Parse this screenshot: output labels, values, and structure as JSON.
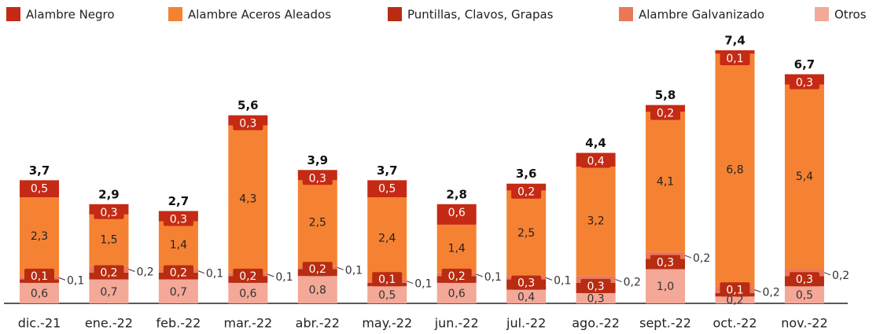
{
  "chart_data": {
    "type": "stacked-bar",
    "categories": [
      "dic.-21",
      "ene.-22",
      "feb.-22",
      "mar.-22",
      "abr.-22",
      "may.-22",
      "jun.-22",
      "jul.-22",
      "ago.-22",
      "sept.-22",
      "oct.-22",
      "nov.-22"
    ],
    "series": [
      {
        "name": "Otros",
        "color": "#f3a898",
        "values": [
          0.6,
          0.7,
          0.7,
          0.6,
          0.8,
          0.5,
          0.6,
          0.4,
          0.3,
          1.0,
          0.2,
          0.5
        ],
        "value_labels": [
          "0,6",
          "0,7",
          "0,7",
          "0,6",
          "0,8",
          "0,5",
          "0,6",
          "0,4",
          "0,3",
          "1,0",
          "0,2",
          "0,5"
        ]
      },
      {
        "name": "Puntillas, Clavos, Grapas",
        "color": "#b92c12",
        "values": [
          0.1,
          0.2,
          0.2,
          0.2,
          0.2,
          0.1,
          0.2,
          0.3,
          0.3,
          0.3,
          0.1,
          0.3
        ],
        "value_labels": [
          "0,1",
          "0,2",
          "0,2",
          "0,2",
          "0,2",
          "0,1",
          "0,2",
          "0,3",
          "0,3",
          "0,3",
          "0,1",
          "0,3"
        ]
      },
      {
        "name": "Alambre Galvanizado",
        "color": "#ea7858",
        "values": [
          0.1,
          0.2,
          0.1,
          0.1,
          0.1,
          0.1,
          0.1,
          0.1,
          0.2,
          0.2,
          0.2,
          0.2
        ],
        "value_labels": [
          "0,1",
          "0,2",
          "0,1",
          "0,1",
          "0,1",
          "0,1",
          "0,1",
          "0,1",
          "0,2",
          "0,2",
          "0,2",
          "0,2"
        ]
      },
      {
        "name": "Alambre Aceros Aleados",
        "color": "#f58232",
        "values": [
          2.3,
          1.5,
          1.4,
          4.3,
          2.5,
          2.4,
          1.4,
          2.5,
          3.2,
          4.1,
          6.8,
          5.4
        ],
        "value_labels": [
          "2,3",
          "1,5",
          "1,4",
          "4,3",
          "2,5",
          "2,4",
          "1,4",
          "2,5",
          "3,2",
          "4,1",
          "6,8",
          "5,4"
        ]
      },
      {
        "name": "Alambre Negro",
        "color": "#c52a15",
        "values": [
          0.5,
          0.3,
          0.3,
          0.3,
          0.3,
          0.5,
          0.6,
          0.2,
          0.4,
          0.2,
          0.1,
          0.3
        ],
        "value_labels": [
          "0,5",
          "0,3",
          "0,3",
          "0,3",
          "0,3",
          "0,5",
          "0,6",
          "0,2",
          "0,4",
          "0,2",
          "0,1",
          "0,3"
        ]
      }
    ],
    "totals": [
      3.7,
      2.9,
      2.7,
      5.6,
      3.9,
      3.7,
      2.8,
      3.6,
      4.4,
      5.8,
      7.4,
      6.7
    ],
    "total_labels": [
      "3,7",
      "2,9",
      "2,7",
      "5,6",
      "3,9",
      "3,7",
      "2,8",
      "3,6",
      "4,4",
      "5,8",
      "7,4",
      "6,7"
    ],
    "legend_order": [
      4,
      3,
      1,
      2,
      0
    ]
  }
}
